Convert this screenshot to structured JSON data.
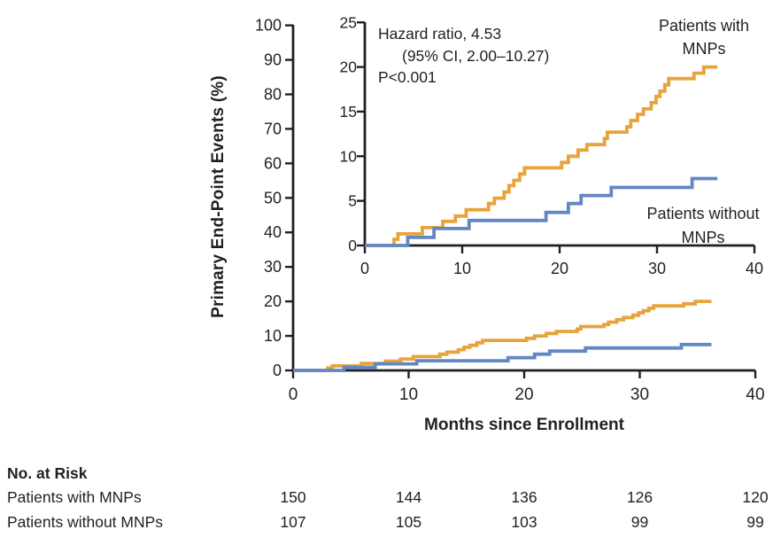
{
  "chart_data": {
    "type": "line",
    "subtype": "kaplan-meier-cumulative-incidence-step-curves",
    "title": "",
    "xlabel": "Months since Enrollment",
    "ylabel": "Primary End-Point Events (%)",
    "xlim": [
      0,
      40
    ],
    "xticks": [
      0,
      10,
      20,
      30,
      40
    ],
    "main_axis": {
      "ylim": [
        0,
        100
      ],
      "yticks": [
        0,
        10,
        20,
        30,
        40,
        50,
        60,
        70,
        80,
        90,
        100
      ]
    },
    "inset_axis": {
      "ylim": [
        0,
        25
      ],
      "yticks": [
        0,
        5,
        10,
        15,
        20,
        25
      ]
    },
    "grid": false,
    "annotation": [
      "Hazard ratio, 4.53",
      "(95% CI, 2.00–10.27)",
      "P<0.001"
    ],
    "series": [
      {
        "name": "Patients with MNPs",
        "label_lines": [
          "Patients with",
          "MNPs"
        ],
        "color": "#E7A33C",
        "follow_up_end_month": 36.2,
        "steps": [
          [
            3.0,
            0.7
          ],
          [
            3.4,
            1.3
          ],
          [
            5.9,
            2.0
          ],
          [
            8.0,
            2.7
          ],
          [
            9.3,
            3.3
          ],
          [
            10.4,
            4.0
          ],
          [
            12.7,
            4.7
          ],
          [
            13.3,
            5.3
          ],
          [
            14.3,
            6.0
          ],
          [
            14.8,
            6.7
          ],
          [
            15.3,
            7.3
          ],
          [
            15.9,
            8.0
          ],
          [
            16.4,
            8.7
          ],
          [
            20.2,
            9.3
          ],
          [
            20.9,
            10.0
          ],
          [
            21.9,
            10.7
          ],
          [
            22.8,
            11.3
          ],
          [
            24.6,
            12.0
          ],
          [
            24.9,
            12.7
          ],
          [
            26.9,
            13.3
          ],
          [
            27.3,
            14.0
          ],
          [
            28.0,
            14.7
          ],
          [
            28.6,
            15.3
          ],
          [
            29.4,
            16.0
          ],
          [
            29.9,
            16.7
          ],
          [
            30.3,
            17.3
          ],
          [
            30.8,
            18.0
          ],
          [
            31.2,
            18.7
          ],
          [
            33.8,
            19.3
          ],
          [
            34.8,
            20.0
          ]
        ]
      },
      {
        "name": "Patients without MNPs",
        "label_lines": [
          "Patients without",
          "MNPs"
        ],
        "color": "#6287C5",
        "follow_up_end_month": 36.2,
        "steps": [
          [
            4.4,
            0.9
          ],
          [
            7.1,
            1.9
          ],
          [
            10.7,
            2.8
          ],
          [
            18.6,
            3.7
          ],
          [
            20.9,
            4.7
          ],
          [
            22.2,
            5.6
          ],
          [
            25.3,
            6.5
          ],
          [
            33.6,
            7.5
          ]
        ]
      }
    ]
  },
  "risk_table": {
    "title": "No. at Risk",
    "columns_months": [
      0,
      10,
      20,
      30,
      40
    ],
    "rows": [
      {
        "label": "Patients with MNPs",
        "counts": [
          "150",
          "144",
          "136",
          "126",
          "120"
        ]
      },
      {
        "label": "Patients without MNPs",
        "counts": [
          "107",
          "105",
          "103",
          "99",
          "99"
        ]
      }
    ]
  },
  "colors": {
    "axis": "#231f20",
    "text": "#231f20",
    "with_mnps": "#E7A33C",
    "without_mnps": "#6287C5",
    "background": "#ffffff"
  }
}
